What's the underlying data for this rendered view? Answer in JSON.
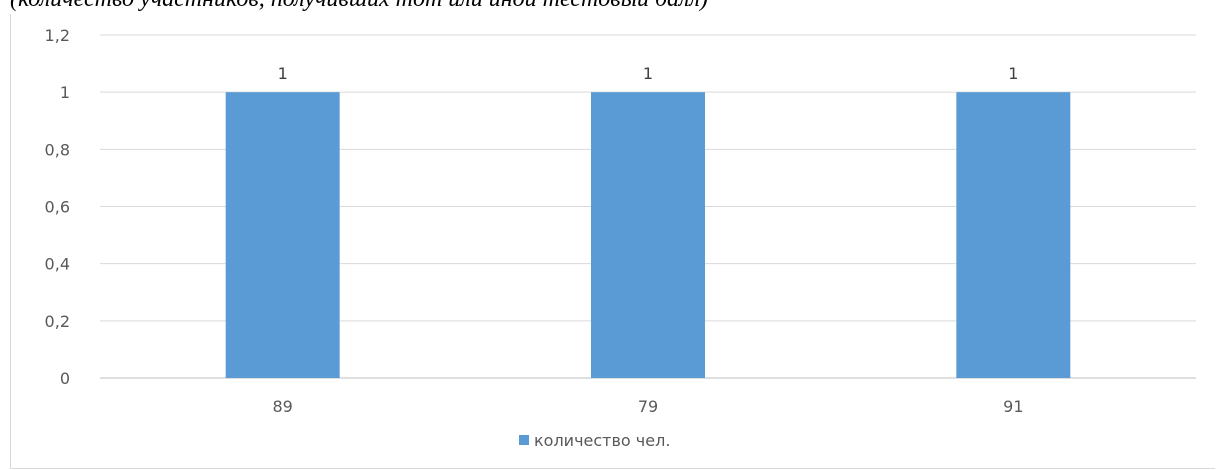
{
  "caption": "(количество участников, получивших тот или иной тестовый балл)",
  "chart_data": {
    "type": "bar",
    "categories": [
      "89",
      "79",
      "91"
    ],
    "series": [
      {
        "name": "количество чел.",
        "values": [
          1,
          1,
          1
        ],
        "color": "#5b9bd5"
      }
    ],
    "ylim": [
      0,
      1.2
    ],
    "yticks": [
      "0",
      "0,2",
      "0,4",
      "0,6",
      "0,8",
      "1",
      "1,2"
    ],
    "data_labels": [
      "1",
      "1",
      "1"
    ],
    "grid": true,
    "legend": "bottom"
  }
}
